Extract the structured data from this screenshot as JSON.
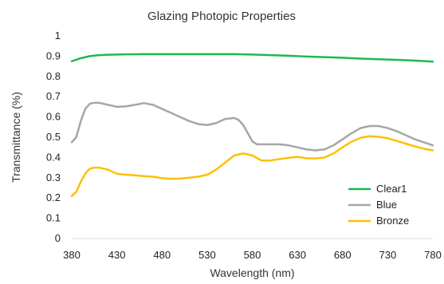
{
  "chart_data": {
    "type": "line",
    "title": "Glazing Photopic Properties",
    "xlabel": "Wavelength (nm)",
    "ylabel": "Transmittance (%)",
    "xlim": [
      380,
      780
    ],
    "ylim": [
      0,
      1
    ],
    "x_ticks": [
      380,
      430,
      480,
      530,
      580,
      630,
      680,
      730,
      780
    ],
    "y_ticks": [
      0,
      0.1,
      0.2,
      0.3,
      0.4,
      0.5,
      0.6,
      0.7,
      0.8,
      0.9,
      1
    ],
    "grid": false,
    "legend": "bottom-right",
    "series": [
      {
        "name": "Clear1",
        "color": "#1db954",
        "x": [
          380,
          390,
          400,
          410,
          420,
          430,
          440,
          460,
          480,
          500,
          520,
          540,
          560,
          580,
          600,
          620,
          640,
          660,
          680,
          700,
          720,
          740,
          760,
          780
        ],
        "y": [
          0.875,
          0.89,
          0.9,
          0.905,
          0.907,
          0.908,
          0.909,
          0.91,
          0.91,
          0.91,
          0.91,
          0.91,
          0.91,
          0.908,
          0.905,
          0.902,
          0.898,
          0.895,
          0.892,
          0.888,
          0.885,
          0.882,
          0.878,
          0.873
        ]
      },
      {
        "name": "Blue",
        "color": "#a6a6a6",
        "x": [
          380,
          385,
          390,
          395,
          400,
          405,
          410,
          420,
          430,
          440,
          450,
          460,
          470,
          480,
          490,
          500,
          510,
          520,
          530,
          540,
          550,
          560,
          565,
          570,
          575,
          580,
          585,
          590,
          600,
          610,
          620,
          630,
          640,
          650,
          660,
          670,
          680,
          690,
          700,
          710,
          720,
          730,
          740,
          750,
          760,
          770,
          780
        ],
        "y": [
          0.475,
          0.5,
          0.58,
          0.64,
          0.665,
          0.67,
          0.67,
          0.66,
          0.65,
          0.652,
          0.66,
          0.668,
          0.66,
          0.64,
          0.62,
          0.6,
          0.58,
          0.565,
          0.56,
          0.57,
          0.59,
          0.595,
          0.585,
          0.56,
          0.52,
          0.48,
          0.465,
          0.465,
          0.465,
          0.465,
          0.46,
          0.45,
          0.44,
          0.435,
          0.44,
          0.46,
          0.49,
          0.52,
          0.545,
          0.555,
          0.555,
          0.545,
          0.53,
          0.51,
          0.49,
          0.475,
          0.46
        ]
      },
      {
        "name": "Bronze",
        "color": "#ffc000",
        "x": [
          380,
          385,
          390,
          395,
          400,
          405,
          410,
          420,
          430,
          440,
          450,
          460,
          470,
          480,
          490,
          500,
          510,
          520,
          530,
          540,
          550,
          560,
          570,
          580,
          590,
          600,
          610,
          620,
          630,
          640,
          650,
          660,
          670,
          680,
          690,
          700,
          710,
          720,
          730,
          740,
          750,
          760,
          770,
          780
        ],
        "y": [
          0.21,
          0.23,
          0.28,
          0.32,
          0.345,
          0.35,
          0.35,
          0.34,
          0.32,
          0.315,
          0.312,
          0.308,
          0.305,
          0.298,
          0.295,
          0.296,
          0.3,
          0.305,
          0.315,
          0.34,
          0.375,
          0.41,
          0.42,
          0.41,
          0.385,
          0.385,
          0.392,
          0.398,
          0.403,
          0.396,
          0.395,
          0.4,
          0.42,
          0.45,
          0.478,
          0.497,
          0.505,
          0.502,
          0.495,
          0.482,
          0.468,
          0.455,
          0.443,
          0.435
        ]
      }
    ]
  }
}
